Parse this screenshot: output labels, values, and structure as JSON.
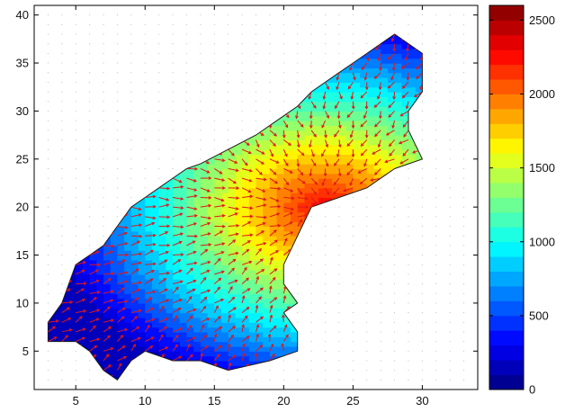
{
  "chart_data": {
    "type": "heatmap",
    "subtype": "filled-contour-with-quiver",
    "title": "",
    "xlabel": "",
    "ylabel": "",
    "xlim": [
      2,
      34
    ],
    "ylim": [
      1,
      41
    ],
    "xticks": [
      5,
      10,
      15,
      20,
      25,
      30
    ],
    "yticks": [
      5,
      10,
      15,
      20,
      25,
      30,
      35,
      40
    ],
    "grid": "dotted",
    "colorbar": {
      "colormap": "jet",
      "range": [
        0,
        2600
      ],
      "levels": 26,
      "ticks": [
        0,
        500,
        1000,
        1500,
        2000,
        2500
      ],
      "placement": "right"
    },
    "domain_outline": [
      [
        3,
        6
      ],
      [
        3,
        8
      ],
      [
        4,
        10
      ],
      [
        5,
        14
      ],
      [
        6,
        15
      ],
      [
        7,
        16
      ],
      [
        8,
        18
      ],
      [
        9,
        20
      ],
      [
        10,
        21
      ],
      [
        11,
        22
      ],
      [
        12,
        23
      ],
      [
        13,
        24
      ],
      [
        14,
        24.5
      ],
      [
        16,
        26
      ],
      [
        18,
        27.5
      ],
      [
        20,
        29.5
      ],
      [
        21,
        30.5
      ],
      [
        22,
        32
      ],
      [
        23,
        33
      ],
      [
        24,
        34
      ],
      [
        25,
        35
      ],
      [
        26,
        36
      ],
      [
        27,
        37
      ],
      [
        28,
        38
      ],
      [
        29,
        37
      ],
      [
        30,
        36
      ],
      [
        30,
        32
      ],
      [
        29,
        30
      ],
      [
        29,
        28
      ],
      [
        30,
        25
      ],
      [
        28,
        24
      ],
      [
        26,
        22
      ],
      [
        24,
        21
      ],
      [
        22,
        20
      ],
      [
        21,
        17
      ],
      [
        20,
        14
      ],
      [
        20,
        12
      ],
      [
        21,
        10
      ],
      [
        20,
        9
      ],
      [
        21,
        7
      ],
      [
        21,
        5
      ],
      [
        19,
        4
      ],
      [
        16,
        3
      ],
      [
        14,
        4
      ],
      [
        12,
        4
      ],
      [
        10,
        5
      ],
      [
        9,
        4
      ],
      [
        8,
        2
      ],
      [
        7,
        3
      ],
      [
        6,
        5
      ],
      [
        5,
        6
      ]
    ],
    "contour_field": {
      "peak": [
        23,
        20
      ],
      "peak_value": 2300,
      "low": [
        7,
        8
      ],
      "low_value": 150
    },
    "quiver": {
      "color": "#e0161b",
      "spacing": 1,
      "direction": "from low toward peak"
    }
  }
}
